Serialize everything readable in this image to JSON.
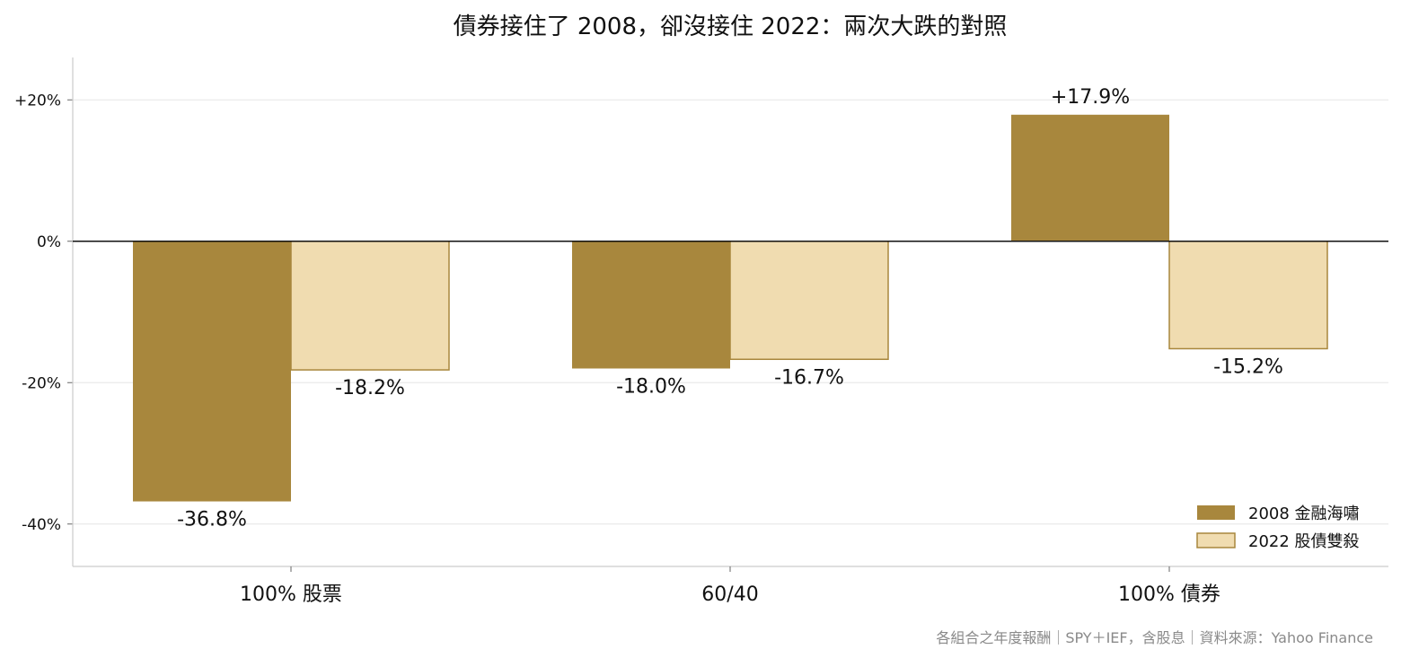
{
  "chart_data": {
    "type": "bar",
    "title": "債券接住了 2008，卻沒接住 2022：兩次大跌的對照",
    "categories": [
      "100% 股票",
      "60/40",
      "100% 債券"
    ],
    "series": [
      {
        "name": "2008 金融海嘯",
        "values": [
          -36.8,
          -18.0,
          17.9
        ],
        "labels": [
          "-36.8%",
          "-18.0%",
          "+17.9%"
        ],
        "color": "#A8873D",
        "edge_color": "#A8873D"
      },
      {
        "name": "2022 股債雙殺",
        "values": [
          -18.2,
          -16.7,
          -15.2
        ],
        "labels": [
          "-18.2%",
          "-16.7%",
          "-15.2%"
        ],
        "color": "#F0DCB0",
        "edge_color": "#A8873D"
      }
    ],
    "yticks": [
      20,
      0,
      -20,
      -40
    ],
    "ytick_labels": [
      "+20%",
      "0%",
      "-20%",
      "-40%"
    ],
    "ylim": [
      -46,
      26
    ],
    "grid": true,
    "legend_position": "bottom-right",
    "axis_color": "#cccccc",
    "grid_color": "#e6e6e6",
    "zero_line_color": "#111111",
    "note": "各組合之年度報酬｜SPY＋IEF，含股息｜資料來源：Yahoo Finance"
  }
}
